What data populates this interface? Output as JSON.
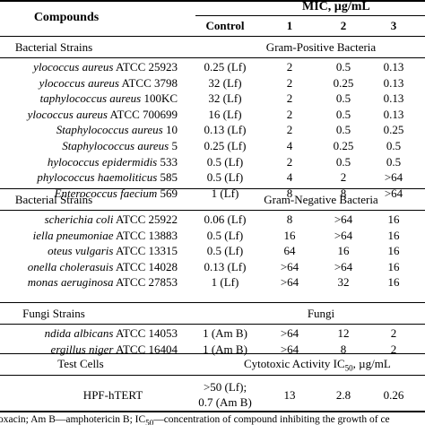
{
  "header": {
    "compounds": "Compounds",
    "mic_label": "MIC, µg/mL",
    "col_control": "Control",
    "col_1": "1",
    "col_2": "2",
    "col_3": "3"
  },
  "sections": [
    {
      "left_title": "Bacterial Strains",
      "right_title": "Gram-Positive Bacteria",
      "rows": [
        {
          "italic": "ylococcus aureus",
          "rest": " ATCC 25923",
          "control": "0.25 (Lf)",
          "c1": "2",
          "c2": "0.5",
          "c3": "0.13"
        },
        {
          "italic": "ylococcus aureus",
          "rest": " ATCC 3798",
          "control": "32 (Lf)",
          "c1": "2",
          "c2": "0.25",
          "c3": "0.13"
        },
        {
          "italic": "taphylococcus aureus",
          "rest": " 100KC",
          "control": "32 (Lf)",
          "c1": "2",
          "c2": "0.5",
          "c3": "0.13"
        },
        {
          "italic": "ylococcus aureus",
          "rest": " ATCC 700699",
          "control": "16 (Lf)",
          "c1": "2",
          "c2": "0.5",
          "c3": "0.13"
        },
        {
          "italic": "Staphylococcus aureus",
          "rest": " 10",
          "control": "0.13 (Lf)",
          "c1": "2",
          "c2": "0.5",
          "c3": "0.25"
        },
        {
          "italic": "Staphylococcus aureus",
          "rest": " 5",
          "control": "0.25 (Lf)",
          "c1": "4",
          "c2": "0.25",
          "c3": "0.5"
        },
        {
          "italic": "hylococcus epidermidis",
          "rest": " 533",
          "control": "0.5 (Lf)",
          "c1": "2",
          "c2": "0.5",
          "c3": "0.5"
        },
        {
          "italic": "phylococcus haemoliticus",
          "rest": " 585",
          "control": "0.5 (Lf)",
          "c1": "4",
          "c2": "2",
          "c3": ">64"
        },
        {
          "italic": "Enterococcus faecium",
          "rest": " 569",
          "control": "1 (Lf)",
          "c1": "8",
          "c2": "8",
          "c3": ">64"
        }
      ]
    },
    {
      "left_title": "Bacterial Strains",
      "right_title": "Gram-Negative Bacteria",
      "rows": [
        {
          "italic": "scherichia coli",
          "rest": " ATCC 25922",
          "control": "0.06 (Lf)",
          "c1": "8",
          "c2": ">64",
          "c3": "16"
        },
        {
          "italic": "iella pneumoniae",
          "rest": " ATCC 13883",
          "control": "0.5 (Lf)",
          "c1": "16",
          "c2": ">64",
          "c3": "16"
        },
        {
          "italic": "oteus vulgaris",
          "rest": " ATCC 13315",
          "control": "0.5 (Lf)",
          "c1": "64",
          "c2": "16",
          "c3": "16"
        },
        {
          "italic": "onella cholerasuis",
          "rest": " ATCC 14028",
          "control": "0.13 (Lf)",
          "c1": ">64",
          "c2": ">64",
          "c3": "16"
        },
        {
          "italic": "monas aeruginosa",
          "rest": " ATCC 27853",
          "control": "1 (Lf)",
          "c1": ">64",
          "c2": "32",
          "c3": "16"
        }
      ]
    },
    {
      "left_title": "Fungi Strains",
      "right_title": "Fungi",
      "rows": [
        {
          "italic": "ndida albicans",
          "rest": " ATCC 14053",
          "control": "1 (Am B)",
          "c1": ">64",
          "c2": "12",
          "c3": "2"
        },
        {
          "italic": "ergillus niger",
          "rest": " ATCC 16404",
          "control": "1 (Am B)",
          "c1": ">64",
          "c2": "8",
          "c3": "2"
        }
      ]
    }
  ],
  "test_cells": {
    "left_title": "Test Cells",
    "right_title_pre": "Cytotoxic Activity IC",
    "right_title_sub": "50",
    "right_title_post": ", µg/mL",
    "row_label": "HPF-hTERT",
    "control_line1": ">50 (Lf);",
    "control_line2": "0.7 (Am B)",
    "c1": "13",
    "c2": "2.8",
    "c3": "0.26"
  },
  "footnote": {
    "pre": "oxacin; Am B—amphotericin B; IC",
    "sub": "50",
    "post": "—concentration of compound inhibiting the growth of ce"
  }
}
